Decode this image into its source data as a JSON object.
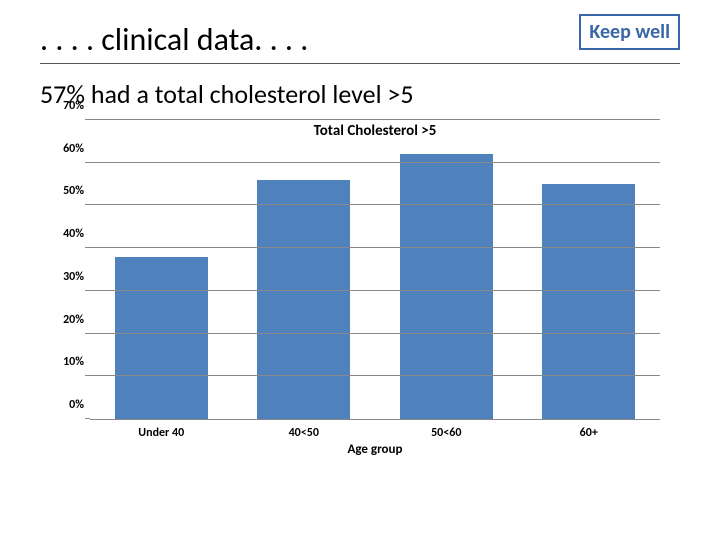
{
  "title": ". . . . clinical data. . . .",
  "subtitle": "57% had a total cholesterol level >5",
  "logo": {
    "text": "Keep well",
    "border_color": "#3966a6",
    "text_color": "#3966a6"
  },
  "chart": {
    "type": "bar",
    "title": "Total Cholesterol >5",
    "title_fontsize": 15,
    "x_axis_label": "Age group",
    "categories": [
      "Under 40",
      "40<50",
      "50<60",
      "60+"
    ],
    "values": [
      38,
      56,
      62,
      55
    ],
    "bar_color": "#4f81bd",
    "ylim": [
      0,
      70
    ],
    "ytick_step": 10,
    "y_ticks": [
      "0%",
      "10%",
      "20%",
      "30%",
      "40%",
      "50%",
      "60%",
      "70%"
    ],
    "grid_color": "#888888",
    "background_color": "#ffffff",
    "label_fontsize": 12,
    "bar_width": 0.65
  }
}
